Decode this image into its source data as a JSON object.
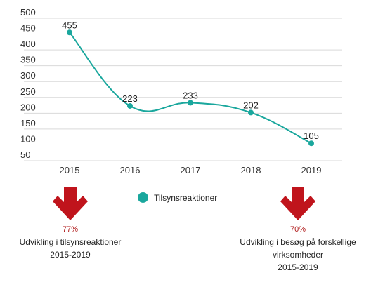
{
  "chart_data": {
    "type": "line",
    "x": [
      "2015",
      "2016",
      "2017",
      "2018",
      "2019"
    ],
    "series": [
      {
        "name": "Tilsynsreaktioner",
        "values": [
          455,
          223,
          233,
          202,
          105
        ]
      }
    ],
    "y_ticks": [
      50,
      100,
      150,
      200,
      250,
      300,
      350,
      400,
      450,
      500
    ],
    "ylim": [
      50,
      500
    ],
    "grid": true,
    "legend": "bottom-center",
    "title": "",
    "xlabel": "",
    "ylabel": ""
  },
  "colors": {
    "series": "#1aa79d",
    "arrow": "#c0141c",
    "percent": "#b01a1a"
  },
  "stats": {
    "left": {
      "percent": "77%",
      "line1": "Udvikling i tilsynsreaktioner",
      "line2": "2015-2019",
      "icon": "arrow-down-icon"
    },
    "right": {
      "percent": "70%",
      "line1": "Udvikling i besøg på forskellige",
      "line2": "virksomheder",
      "line3": "2015-2019",
      "icon": "arrow-down-icon"
    }
  }
}
